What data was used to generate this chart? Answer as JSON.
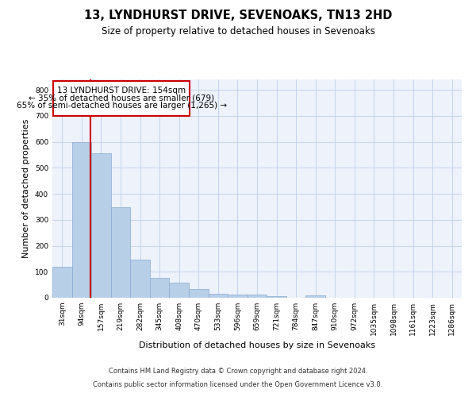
{
  "title": "13, LYNDHURST DRIVE, SEVENOAKS, TN13 2HD",
  "subtitle": "Size of property relative to detached houses in Sevenoaks",
  "xlabel": "Distribution of detached houses by size in Sevenoaks",
  "ylabel": "Number of detached properties",
  "bins": [
    "31sqm",
    "94sqm",
    "157sqm",
    "219sqm",
    "282sqm",
    "345sqm",
    "408sqm",
    "470sqm",
    "533sqm",
    "596sqm",
    "659sqm",
    "721sqm",
    "784sqm",
    "847sqm",
    "910sqm",
    "972sqm",
    "1035sqm",
    "1098sqm",
    "1161sqm",
    "1223sqm",
    "1286sqm"
  ],
  "values": [
    120,
    600,
    555,
    348,
    148,
    75,
    57,
    33,
    14,
    13,
    13,
    7,
    0,
    8,
    0,
    0,
    0,
    0,
    0,
    0,
    0
  ],
  "bar_color": "#b8cfe8",
  "bar_edge_color": "#88aad0",
  "red_line_x": 1.45,
  "annotation_box_color": "#ffffff",
  "annotation_box_edge": "#cc0000",
  "ann_line1": "13 LYNDHURST DRIVE: 154sqm",
  "ann_line2": "← 35% of detached houses are smaller (679)",
  "ann_line3": "65% of semi-detached houses are larger (1,265) →",
  "footer1": "Contains HM Land Registry data © Crown copyright and database right 2024.",
  "footer2": "Contains public sector information licensed under the Open Government Licence v3.0.",
  "ylim": [
    0,
    840
  ],
  "yticks": [
    0,
    100,
    200,
    300,
    400,
    500,
    600,
    700,
    800
  ],
  "background_color": "#edf2fb",
  "plot_background": "#ffffff",
  "title_fontsize": 10.5,
  "subtitle_fontsize": 8.5,
  "tick_fontsize": 6.5,
  "ylabel_fontsize": 8,
  "xlabel_fontsize": 8,
  "ann_fontsize": 7.5
}
